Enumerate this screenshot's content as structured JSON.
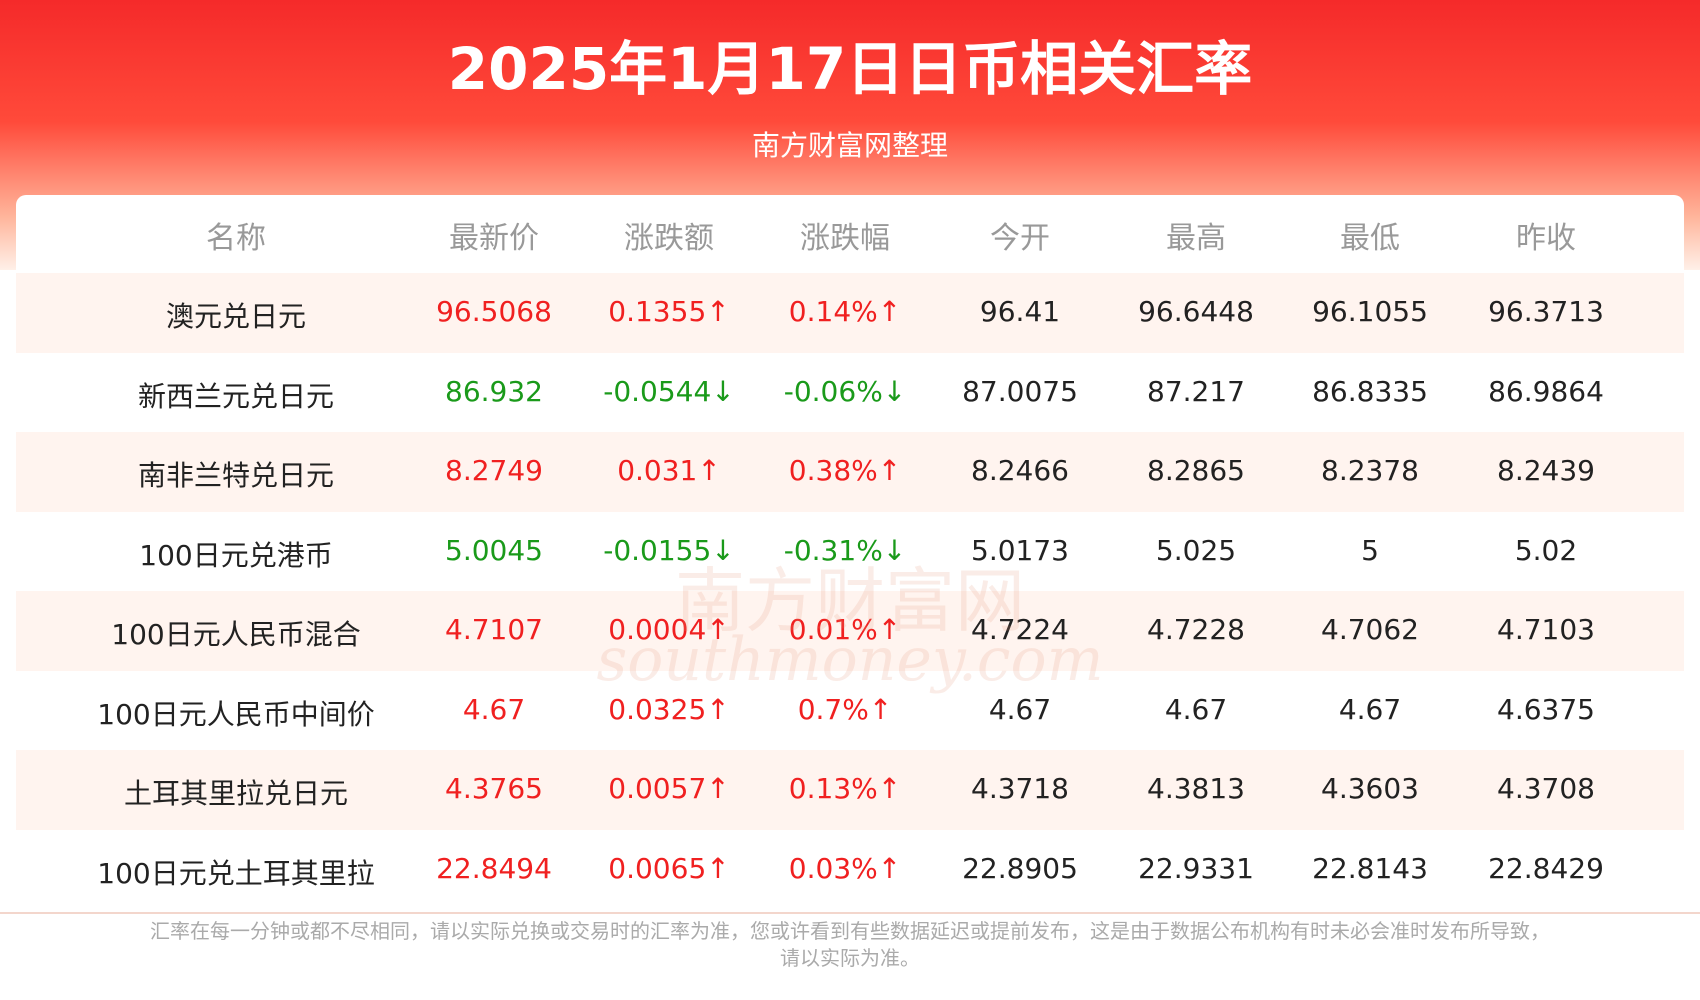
{
  "header": {
    "title": "2025年1月17日日币相关汇率",
    "subtitle": "南方财富网整理"
  },
  "watermark": [
    "南方财富网",
    "southmoney.com"
  ],
  "table": {
    "columns": [
      "名称",
      "最新价",
      "涨跌额",
      "涨跌幅",
      "今开",
      "最高",
      "最低",
      "昨收"
    ],
    "rows": [
      [
        "澳元兑日元",
        "96.5068",
        "0.1355↑",
        "0.14%↑",
        "96.41",
        "96.6448",
        "96.1055",
        "96.3713"
      ],
      [
        "新西兰元兑日元",
        "86.932",
        "-0.0544↓",
        "-0.06%↓",
        "87.0075",
        "87.217",
        "86.8335",
        "86.9864"
      ],
      [
        "南非兰特兑日元",
        "8.2749",
        "0.031↑",
        "0.38%↑",
        "8.2466",
        "8.2865",
        "8.2378",
        "8.2439"
      ],
      [
        "100日元兑港币",
        "5.0045",
        "-0.0155↓",
        "-0.31%↓",
        "5.0173",
        "5.025",
        "5",
        "5.02"
      ],
      [
        "100日元人民币混合",
        "4.7107",
        "0.0004↑",
        "0.01%↑",
        "4.7224",
        "4.7228",
        "4.7062",
        "4.7103"
      ],
      [
        "100日元人民币中间价",
        "4.67",
        "0.0325↑",
        "0.7%↑",
        "4.67",
        "4.67",
        "4.67",
        "4.6375"
      ],
      [
        "土耳其里拉兑日元",
        "4.3765",
        "0.0057↑",
        "0.13%↑",
        "4.3718",
        "4.3813",
        "4.3603",
        "4.3708"
      ],
      [
        "100日元兑土耳其里拉",
        "22.8494",
        "0.0065↑",
        "0.03%↑",
        "22.8905",
        "22.9331",
        "22.8143",
        "22.8429"
      ]
    ]
  },
  "footer": {
    "note": [
      "汇率在每一分钟或都不尽相同，请以实际兑换或交易时的汇率为准，您或许看到有些数据延迟或提前发布，这是由于数据公布机构有时未必会准时发布所导致，",
      "请以实际为准。"
    ]
  }
}
